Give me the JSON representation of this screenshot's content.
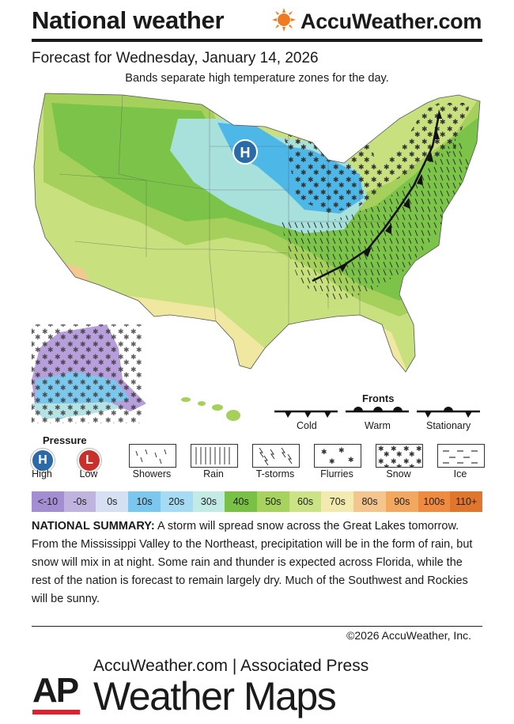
{
  "header": {
    "title": "National weather",
    "brand": "AccuWeather.com",
    "forecast": "Forecast for Wednesday, January 14, 2026",
    "subtitle": "Bands separate high temperature zones for the day."
  },
  "map": {
    "high_marker": "H",
    "colors": {
      "t20s": "#4db7e8",
      "t30s": "#a8e0dc",
      "t40s": "#7cc449",
      "t50s": "#a5d05c",
      "t60s": "#c8e07e",
      "t70s": "#f0e7a0",
      "t80s": "#f3c98f"
    }
  },
  "fronts": {
    "title": "Fronts",
    "items": [
      "Cold",
      "Warm",
      "Stationary"
    ]
  },
  "pressure": {
    "title": "Pressure",
    "high_symbol": "H",
    "high_label": "High",
    "low_symbol": "L",
    "low_label": "Low",
    "high_color": "#2b6aa8",
    "low_color": "#c8302c"
  },
  "precip": {
    "items": [
      "Showers",
      "Rain",
      "T-storms",
      "Flurries",
      "Snow",
      "Ice"
    ]
  },
  "scale": [
    {
      "label": "<-10",
      "color": "#a48dd0"
    },
    {
      "label": "-0s",
      "color": "#c1b3e0"
    },
    {
      "label": "0s",
      "color": "#d6e0f3"
    },
    {
      "label": "10s",
      "color": "#7bc7ee"
    },
    {
      "label": "20s",
      "color": "#a5dcf3"
    },
    {
      "label": "30s",
      "color": "#c3ebe6"
    },
    {
      "label": "40s",
      "color": "#79c145"
    },
    {
      "label": "50s",
      "color": "#a6d25d"
    },
    {
      "label": "60s",
      "color": "#cbe285"
    },
    {
      "label": "70s",
      "color": "#f3eab0"
    },
    {
      "label": "80s",
      "color": "#f4c58d"
    },
    {
      "label": "90s",
      "color": "#f3a860"
    },
    {
      "label": "100s",
      "color": "#ef8a3f"
    },
    {
      "label": "110+",
      "color": "#e0752c"
    }
  ],
  "summary": {
    "lead": "NATIONAL SUMMARY:",
    "text": " A storm will spread snow across the Great Lakes tomorrow. From the Mississippi Valley to the Northeast, precipitation will be in the form of rain, but snow will mix in at night. Some rain and thunder is expected across Florida, while the rest of the nation is forecast to remain largely dry. Much of the Southwest and Rockies will be sunny."
  },
  "copyright": "©2026 AccuWeather, Inc.",
  "footer": {
    "ap": "AP",
    "partners": "AccuWeather.com | Associated Press",
    "product": "Weather Maps"
  }
}
